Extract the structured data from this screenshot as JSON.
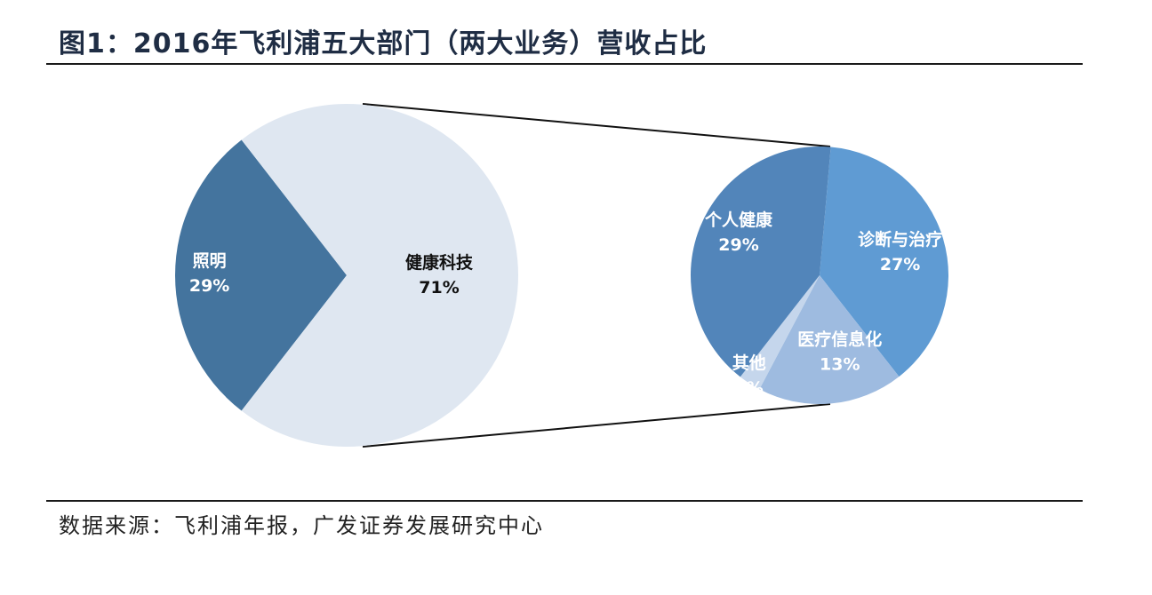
{
  "title": "图1：2016年飞利浦五大部门（两大业务）营收占比",
  "source": "数据来源：飞利浦年报，广发证券发展研究中心",
  "chart_data": [
    {
      "type": "pie",
      "categories": [
        "照明",
        "健康科技"
      ],
      "values": [
        29,
        71
      ],
      "value_labels": [
        "29%",
        "71%"
      ],
      "colors": [
        "#44749e",
        "#dfe7f1"
      ]
    },
    {
      "type": "pie",
      "categories": [
        "诊断与治疗",
        "医疗信息化",
        "其他",
        "个人健康"
      ],
      "values": [
        27,
        13,
        2,
        29
      ],
      "value_labels": [
        "27%",
        "13%",
        "2%",
        "29%"
      ],
      "colors": [
        "#5f9bd3",
        "#9ebbe0",
        "#c5d6ec",
        "#5285ba"
      ]
    }
  ]
}
